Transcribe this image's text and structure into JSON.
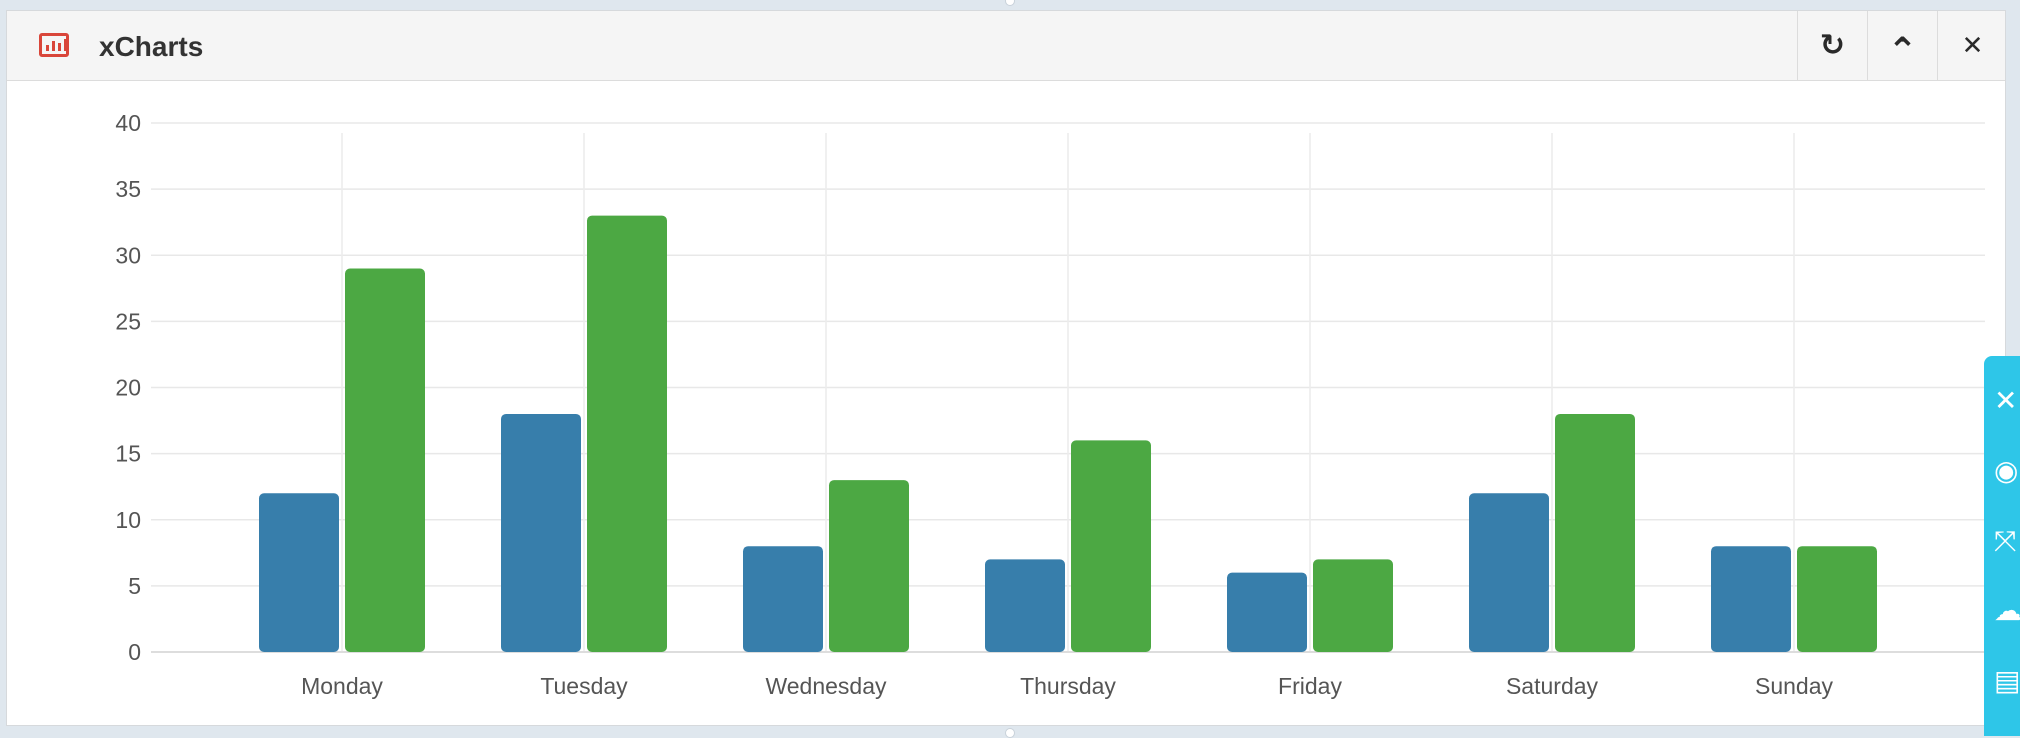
{
  "window": {
    "title": "xCharts",
    "icon": "bar-chart-icon",
    "buttons": [
      {
        "name": "refresh-button",
        "icon": "refresh-icon",
        "glyph": "↻"
      },
      {
        "name": "collapse-button",
        "icon": "chevron-up-icon",
        "glyph": "⌃"
      },
      {
        "name": "close-button",
        "icon": "close-icon",
        "glyph": "✕"
      }
    ]
  },
  "side_toolbar": {
    "color": "#2ec6e8",
    "tools": [
      {
        "name": "close-tool",
        "icon": "close-icon",
        "glyph": "✕"
      },
      {
        "name": "camera-tool",
        "icon": "camera-icon",
        "glyph": "◉"
      },
      {
        "name": "fullscreen-tool",
        "icon": "expand-icon",
        "glyph": "⤧"
      },
      {
        "name": "upload-tool",
        "icon": "cloud-upload-icon",
        "glyph": "☁"
      },
      {
        "name": "copy-tool",
        "icon": "copy-icon",
        "glyph": "▤"
      }
    ]
  },
  "chart_data": {
    "type": "bar",
    "title": "",
    "xlabel": "",
    "ylabel": "",
    "categories": [
      "Monday",
      "Tuesday",
      "Wednesday",
      "Thursday",
      "Friday",
      "Saturday",
      "Sunday"
    ],
    "series": [
      {
        "color": "#377eab",
        "values": [
          12,
          18,
          8,
          7,
          6,
          12,
          8
        ]
      },
      {
        "color": "#4ca843",
        "values": [
          29,
          33,
          13,
          16,
          7,
          18,
          8
        ]
      }
    ],
    "ylim": [
      0,
      40
    ],
    "yticks": [
      0,
      5,
      10,
      15,
      20,
      25,
      30,
      35,
      40
    ],
    "grid": true,
    "legend": "none"
  }
}
